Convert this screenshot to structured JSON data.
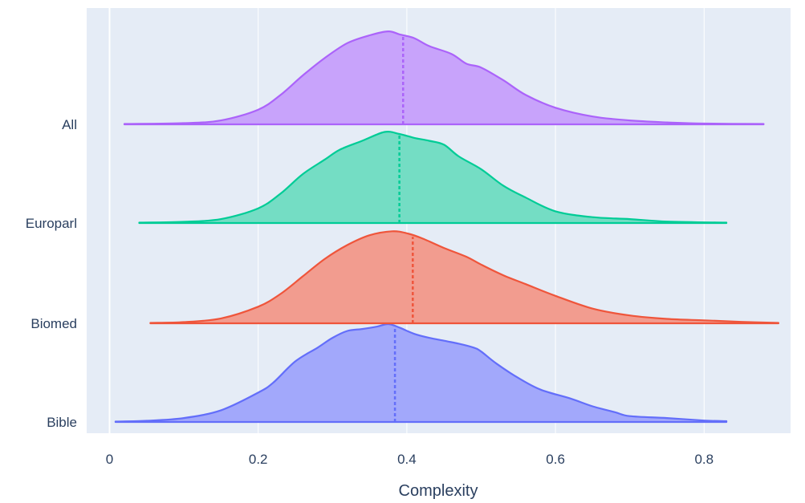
{
  "chart_data": {
    "type": "violin",
    "orientation": "horizontal",
    "side": "positive",
    "title": "",
    "xlabel": "Complexity",
    "ylabel": "",
    "xlim": [
      -0.03,
      0.9
    ],
    "x_ticks": [
      0,
      0.2,
      0.4,
      0.6,
      0.8
    ],
    "x_tick_labels": [
      "0",
      "0.2",
      "0.4",
      "0.6",
      "0.8"
    ],
    "categories": [
      "Bible",
      "Biomed",
      "Europarl",
      "All"
    ],
    "grid": true,
    "legend": "none",
    "plot_background": "#e5ecf6",
    "series": [
      {
        "category": "Bible",
        "color": "#636efa",
        "fill": "#a2a8fb",
        "mean": 0.384,
        "density": [
          [
            0.008,
            0.004
          ],
          [
            0.05,
            0.012
          ],
          [
            0.1,
            0.04
          ],
          [
            0.15,
            0.12
          ],
          [
            0.2,
            0.3
          ],
          [
            0.22,
            0.4
          ],
          [
            0.25,
            0.62
          ],
          [
            0.28,
            0.76
          ],
          [
            0.3,
            0.86
          ],
          [
            0.32,
            0.93
          ],
          [
            0.34,
            0.95
          ],
          [
            0.36,
            0.975
          ],
          [
            0.375,
            1.0
          ],
          [
            0.39,
            0.965
          ],
          [
            0.41,
            0.9
          ],
          [
            0.43,
            0.86
          ],
          [
            0.45,
            0.83
          ],
          [
            0.47,
            0.8
          ],
          [
            0.49,
            0.76
          ],
          [
            0.5,
            0.72
          ],
          [
            0.52,
            0.6
          ],
          [
            0.55,
            0.45
          ],
          [
            0.58,
            0.33
          ],
          [
            0.62,
            0.24
          ],
          [
            0.65,
            0.16
          ],
          [
            0.68,
            0.1
          ],
          [
            0.7,
            0.06
          ],
          [
            0.75,
            0.04
          ],
          [
            0.8,
            0.015
          ],
          [
            0.83,
            0.008
          ]
        ]
      },
      {
        "category": "Biomed",
        "color": "#ef553b",
        "fill": "#f29c8f",
        "mean": 0.408,
        "density": [
          [
            0.055,
            0.004
          ],
          [
            0.1,
            0.012
          ],
          [
            0.15,
            0.05
          ],
          [
            0.2,
            0.17
          ],
          [
            0.23,
            0.3
          ],
          [
            0.26,
            0.48
          ],
          [
            0.29,
            0.66
          ],
          [
            0.32,
            0.8
          ],
          [
            0.35,
            0.9
          ],
          [
            0.38,
            0.94
          ],
          [
            0.4,
            0.92
          ],
          [
            0.42,
            0.87
          ],
          [
            0.45,
            0.77
          ],
          [
            0.48,
            0.68
          ],
          [
            0.5,
            0.6
          ],
          [
            0.53,
            0.49
          ],
          [
            0.56,
            0.4
          ],
          [
            0.6,
            0.28
          ],
          [
            0.65,
            0.15
          ],
          [
            0.7,
            0.08
          ],
          [
            0.75,
            0.045
          ],
          [
            0.8,
            0.03
          ],
          [
            0.85,
            0.015
          ],
          [
            0.9,
            0.004
          ]
        ]
      },
      {
        "category": "Europarl",
        "color": "#00cc96",
        "fill": "#74ddc4",
        "mean": 0.39,
        "density": [
          [
            0.04,
            0.004
          ],
          [
            0.1,
            0.012
          ],
          [
            0.15,
            0.04
          ],
          [
            0.2,
            0.15
          ],
          [
            0.23,
            0.3
          ],
          [
            0.26,
            0.5
          ],
          [
            0.29,
            0.65
          ],
          [
            0.31,
            0.75
          ],
          [
            0.34,
            0.84
          ],
          [
            0.37,
            0.93
          ],
          [
            0.39,
            0.91
          ],
          [
            0.41,
            0.87
          ],
          [
            0.43,
            0.84
          ],
          [
            0.45,
            0.8
          ],
          [
            0.47,
            0.68
          ],
          [
            0.5,
            0.55
          ],
          [
            0.53,
            0.38
          ],
          [
            0.56,
            0.26
          ],
          [
            0.6,
            0.12
          ],
          [
            0.65,
            0.06
          ],
          [
            0.7,
            0.04
          ],
          [
            0.75,
            0.015
          ],
          [
            0.83,
            0.004
          ]
        ]
      },
      {
        "category": "All",
        "color": "#ab63fa",
        "fill": "#c8a3fb",
        "mean": 0.395,
        "density": [
          [
            0.02,
            0.004
          ],
          [
            0.1,
            0.012
          ],
          [
            0.15,
            0.04
          ],
          [
            0.2,
            0.15
          ],
          [
            0.23,
            0.3
          ],
          [
            0.26,
            0.5
          ],
          [
            0.29,
            0.68
          ],
          [
            0.32,
            0.83
          ],
          [
            0.35,
            0.91
          ],
          [
            0.375,
            0.95
          ],
          [
            0.39,
            0.92
          ],
          [
            0.41,
            0.88
          ],
          [
            0.43,
            0.8
          ],
          [
            0.46,
            0.72
          ],
          [
            0.48,
            0.62
          ],
          [
            0.5,
            0.58
          ],
          [
            0.53,
            0.45
          ],
          [
            0.56,
            0.3
          ],
          [
            0.6,
            0.17
          ],
          [
            0.65,
            0.08
          ],
          [
            0.7,
            0.04
          ],
          [
            0.75,
            0.02
          ],
          [
            0.8,
            0.008
          ],
          [
            0.88,
            0.004
          ]
        ]
      }
    ]
  }
}
